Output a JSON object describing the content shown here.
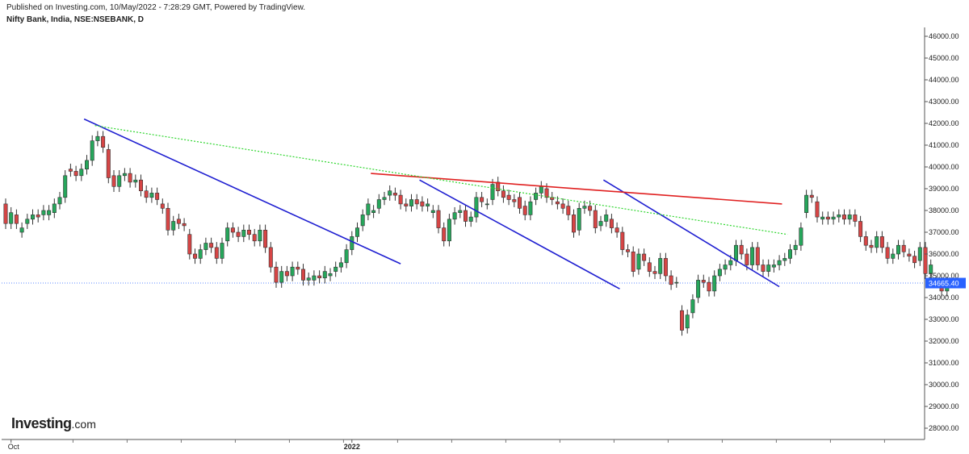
{
  "header": {
    "published": "Published on Investing.com, 10/May/2022 - 7:28:29 GMT, Powered by TradingView.",
    "symbol": "Nifty Bank, India, NSE:NSEBANK, D"
  },
  "logo": {
    "main": "Investing",
    "suffix": ".com"
  },
  "chart_data": {
    "type": "candlestick",
    "y_ticks": [
      "46000.00",
      "45000.00",
      "44000.00",
      "43000.00",
      "42000.00",
      "41000.00",
      "40000.00",
      "39000.00",
      "38000.00",
      "37000.00",
      "36000.00",
      "35000.00",
      "34000.00",
      "33000.00",
      "32000.00",
      "31000.00",
      "30000.00",
      "29000.00",
      "28000.00"
    ],
    "ylim": [
      27300,
      46300
    ],
    "x_labels": [
      {
        "label": "Oct",
        "bar": 1,
        "bold": false
      },
      {
        "label": "2022",
        "bar": 64,
        "bold": true
      }
    ],
    "last_price": "34665.40",
    "last_price_color": "#2962ff",
    "up_color": "#26a65b",
    "down_color": "#d64545",
    "candles": [
      [
        38300,
        37400
      ],
      [
        37400,
        37900
      ],
      [
        37800,
        37400
      ],
      [
        37000,
        37200
      ],
      [
        37400,
        37600
      ],
      [
        37600,
        37800
      ],
      [
        37800,
        37700
      ],
      [
        37800,
        38000
      ],
      [
        37800,
        38000
      ],
      [
        37900,
        38300
      ],
      [
        38300,
        38600
      ],
      [
        38600,
        39600
      ],
      [
        39900,
        39800
      ],
      [
        39800,
        39600
      ],
      [
        39600,
        39900
      ],
      [
        39900,
        40300
      ],
      [
        40300,
        41200
      ],
      [
        41200,
        41400
      ],
      [
        41400,
        40900
      ],
      [
        40800,
        39500
      ],
      [
        39600,
        39100
      ],
      [
        39100,
        39600
      ],
      [
        39600,
        39700
      ],
      [
        39700,
        39300
      ],
      [
        39300,
        39400
      ],
      [
        39400,
        38900
      ],
      [
        38900,
        38600
      ],
      [
        38600,
        38800
      ],
      [
        38800,
        38500
      ],
      [
        38300,
        38100
      ],
      [
        38100,
        37100
      ],
      [
        37100,
        37500
      ],
      [
        37600,
        37400
      ],
      [
        37400,
        37300
      ],
      [
        36900,
        36000
      ],
      [
        36000,
        35800
      ],
      [
        35800,
        36200
      ],
      [
        36200,
        36500
      ],
      [
        36500,
        36300
      ],
      [
        36300,
        35800
      ],
      [
        35800,
        36500
      ],
      [
        36600,
        37200
      ],
      [
        37200,
        37000
      ],
      [
        37000,
        36800
      ],
      [
        36800,
        37100
      ],
      [
        37100,
        36900
      ],
      [
        36900,
        36600
      ],
      [
        36600,
        37100
      ],
      [
        37100,
        36300
      ],
      [
        36300,
        35400
      ],
      [
        35400,
        34700
      ],
      [
        34700,
        35200
      ],
      [
        35200,
        35000
      ],
      [
        35000,
        35400
      ],
      [
        35400,
        35300
      ],
      [
        35300,
        34800
      ],
      [
        34800,
        34900
      ],
      [
        34800,
        35000
      ],
      [
        35000,
        34900
      ],
      [
        34900,
        35200
      ],
      [
        35000,
        35100
      ],
      [
        35200,
        35400
      ],
      [
        35400,
        35600
      ],
      [
        35600,
        36200
      ],
      [
        36200,
        36800
      ],
      [
        36800,
        37200
      ],
      [
        37300,
        37800
      ],
      [
        37800,
        38300
      ],
      [
        37900,
        38000
      ],
      [
        38100,
        38500
      ],
      [
        38500,
        38600
      ],
      [
        38700,
        38900
      ],
      [
        38800,
        38700
      ],
      [
        38700,
        38300
      ],
      [
        38300,
        38200
      ],
      [
        38200,
        38500
      ],
      [
        38500,
        38300
      ],
      [
        38400,
        38200
      ],
      [
        38200,
        38300
      ],
      [
        37900,
        38000
      ],
      [
        38000,
        37200
      ],
      [
        37200,
        36600
      ],
      [
        36600,
        37600
      ],
      [
        37600,
        37900
      ],
      [
        37900,
        38000
      ],
      [
        38000,
        37500
      ],
      [
        37500,
        37700
      ],
      [
        37700,
        38600
      ],
      [
        38600,
        38400
      ],
      [
        38300,
        38300
      ],
      [
        38500,
        39200
      ],
      [
        39300,
        38900
      ],
      [
        38900,
        38600
      ],
      [
        38700,
        38500
      ],
      [
        38500,
        38400
      ],
      [
        38600,
        38100
      ],
      [
        38200,
        37800
      ],
      [
        37800,
        38400
      ],
      [
        38500,
        38800
      ],
      [
        38800,
        39100
      ],
      [
        39000,
        38600
      ],
      [
        38600,
        38500
      ],
      [
        38400,
        38300
      ],
      [
        38300,
        38100
      ],
      [
        38200,
        37800
      ],
      [
        37800,
        37000
      ],
      [
        37100,
        38100
      ],
      [
        38100,
        38200
      ],
      [
        38200,
        38000
      ],
      [
        38000,
        37200
      ],
      [
        37300,
        37500
      ],
      [
        37500,
        37800
      ],
      [
        37600,
        37200
      ],
      [
        37200,
        37000
      ],
      [
        37000,
        36200
      ],
      [
        36200,
        36100
      ],
      [
        36100,
        35200
      ],
      [
        35300,
        36000
      ],
      [
        36000,
        35700
      ],
      [
        35600,
        35200
      ],
      [
        35200,
        35100
      ],
      [
        35100,
        35800
      ],
      [
        35800,
        35000
      ],
      [
        35000,
        34600
      ],
      [
        34700,
        34700
      ],
      [
        33400,
        32500
      ],
      [
        32600,
        33200
      ],
      [
        33300,
        33900
      ],
      [
        34000,
        34800
      ],
      [
        34800,
        34700
      ],
      [
        34700,
        34300
      ],
      [
        34300,
        35000
      ],
      [
        35000,
        35300
      ],
      [
        35300,
        35500
      ],
      [
        35500,
        35700
      ],
      [
        35700,
        36400
      ],
      [
        36400,
        36000
      ],
      [
        36000,
        35500
      ],
      [
        35500,
        36300
      ],
      [
        36300,
        35500
      ],
      [
        35500,
        35200
      ],
      [
        35200,
        35500
      ],
      [
        35400,
        35500
      ],
      [
        35500,
        35700
      ],
      [
        35700,
        35800
      ],
      [
        35800,
        36200
      ],
      [
        36200,
        36400
      ],
      [
        36400,
        37200
      ],
      [
        37900,
        38700
      ],
      [
        38700,
        38600
      ],
      [
        38400,
        37700
      ],
      [
        37600,
        37700
      ],
      [
        37700,
        37600
      ],
      [
        37600,
        37700
      ],
      [
        37700,
        37800
      ],
      [
        37800,
        37600
      ],
      [
        37600,
        37800
      ],
      [
        37800,
        37500
      ],
      [
        37500,
        36800
      ],
      [
        36800,
        36400
      ],
      [
        36400,
        36300
      ],
      [
        36300,
        36800
      ],
      [
        36800,
        36300
      ],
      [
        36300,
        35800
      ],
      [
        35800,
        36000
      ],
      [
        36000,
        36400
      ],
      [
        36400,
        36100
      ],
      [
        36000,
        35900
      ],
      [
        35900,
        35600
      ],
      [
        35700,
        36300
      ],
      [
        36300,
        35100
      ],
      [
        35100,
        35500
      ],
      [
        34700,
        34700
      ],
      [
        34700,
        34300
      ],
      [
        34300,
        34700
      ]
    ],
    "lines": [
      {
        "type": "trendline",
        "color": "#1f1fd1",
        "style": "solid",
        "x1": 14.5,
        "y1": 42200,
        "x2": 73,
        "y2": 35550
      },
      {
        "type": "trendline",
        "color": "#1f1fd1",
        "style": "solid",
        "x1": 76.5,
        "y1": 39400,
        "x2": 113.5,
        "y2": 34400
      },
      {
        "type": "trendline",
        "color": "#1f1fd1",
        "style": "solid",
        "x1": 110.5,
        "y1": 39400,
        "x2": 143,
        "y2": 34500
      },
      {
        "type": "resistance",
        "color": "#e02020",
        "style": "solid",
        "x1": 67.5,
        "y1": 39700,
        "x2": 143.5,
        "y2": 38300
      },
      {
        "type": "trendline",
        "color": "#2ed62e",
        "style": "dotted",
        "x1": 16.5,
        "y1": 41900,
        "x2": 144.5,
        "y2": 36900
      }
    ]
  }
}
